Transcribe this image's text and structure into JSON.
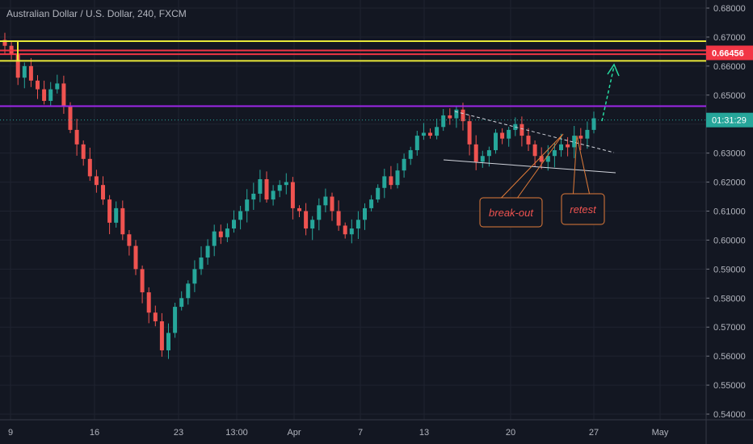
{
  "header": {
    "title": "Australian Dollar / U.S. Dollar, 240, FXCM"
  },
  "chart_data": {
    "type": "candlestick",
    "ylim": [
      0.54,
      0.68
    ],
    "y_ticks": [
      "0.68000",
      "0.67000",
      "0.66000",
      "0.65000",
      "0.64000",
      "0.63000",
      "0.62000",
      "0.61000",
      "0.60000",
      "0.59000",
      "0.58000",
      "0.57000",
      "0.56000",
      "0.55000",
      "0.54000"
    ],
    "x_ticks": [
      "9",
      "16",
      "23",
      "13:00",
      "Apr",
      "7",
      "13",
      "20",
      "27",
      "May"
    ],
    "price_label": {
      "text": "0.66456",
      "value": 0.66456
    },
    "countdown_label": {
      "text": "01:31:29",
      "value": 0.6414
    },
    "horizontal_levels": [
      {
        "value": 0.6686,
        "color": "#e8e83a"
      },
      {
        "value": 0.6654,
        "color": "#f23645"
      },
      {
        "value": 0.6641,
        "color": "#f23645"
      },
      {
        "value": 0.6618,
        "color": "#e8e83a"
      },
      {
        "value": 0.6462,
        "color": "#9c27e8"
      }
    ],
    "annotations": [
      {
        "text": "break-out"
      },
      {
        "text": "retest"
      }
    ],
    "series": [
      {
        "close": [
          0.667,
          0.664,
          0.656,
          0.66,
          0.655,
          0.652,
          0.648,
          0.652,
          0.654,
          0.646,
          0.638,
          0.633,
          0.628,
          0.622,
          0.619,
          0.614,
          0.606,
          0.611,
          0.602,
          0.598,
          0.59,
          0.582,
          0.575,
          0.572,
          0.562,
          0.568,
          0.577,
          0.58,
          0.585,
          0.59,
          0.594,
          0.598,
          0.603,
          0.601,
          0.604,
          0.607,
          0.61,
          0.614,
          0.616,
          0.621,
          0.614,
          0.617,
          0.619,
          0.62,
          0.611,
          0.61,
          0.604,
          0.607,
          0.612,
          0.615,
          0.61,
          0.605,
          0.602,
          0.604,
          0.607,
          0.611,
          0.614,
          0.618,
          0.622,
          0.619,
          0.624,
          0.628,
          0.631,
          0.636,
          0.637,
          0.636,
          0.639,
          0.643,
          0.642,
          0.645,
          0.641,
          0.633,
          0.627,
          0.629,
          0.631,
          0.637,
          0.635,
          0.638,
          0.64,
          0.636,
          0.633,
          0.629,
          0.627,
          0.629,
          0.631,
          0.633,
          0.632,
          0.636,
          0.635,
          0.638,
          0.642
        ],
        "candles": 91
      }
    ]
  }
}
